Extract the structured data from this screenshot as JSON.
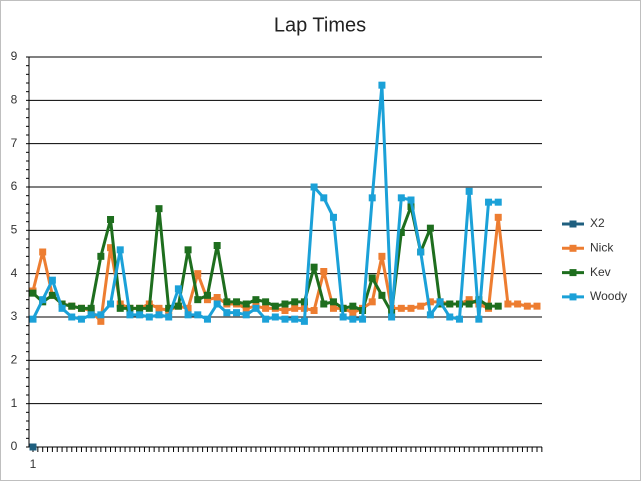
{
  "chart_data": {
    "type": "line",
    "title": "Lap Times",
    "categories": [
      "1",
      null,
      null,
      null,
      null,
      null,
      null,
      null,
      null,
      null,
      null,
      null,
      null,
      null,
      null,
      null,
      null,
      null,
      null,
      null,
      null,
      null,
      null,
      null,
      null,
      null,
      null,
      null,
      null,
      null,
      null,
      null,
      null,
      null,
      null,
      null,
      null,
      null,
      null,
      null,
      null,
      null,
      null,
      null,
      null,
      null,
      null,
      null,
      null,
      null,
      null,
      null,
      null
    ],
    "ylim": [
      0,
      9
    ],
    "yticks": [
      0,
      1,
      2,
      3,
      4,
      5,
      6,
      7,
      8,
      9
    ],
    "grid": true,
    "legend": "right",
    "series": [
      {
        "name": "X2",
        "color": "#1f5f7f",
        "values": [
          0,
          null,
          null,
          null,
          null,
          null,
          null,
          null,
          null,
          null,
          null,
          null,
          null,
          null,
          null,
          null,
          null,
          null,
          null,
          null,
          null,
          null,
          null,
          null,
          null,
          null,
          null,
          null,
          null,
          null,
          null,
          null,
          null,
          null,
          null,
          null,
          null,
          null,
          null,
          null,
          null,
          null,
          null,
          null,
          null,
          null,
          null,
          null,
          null,
          null,
          null,
          null,
          null
        ]
      },
      {
        "name": "Nick",
        "color": "#ed7d31",
        "values": [
          3.6,
          4.5,
          3.5,
          3.3,
          3.25,
          3.2,
          3.15,
          2.9,
          4.6,
          3.3,
          3.2,
          3.2,
          3.3,
          3.2,
          3.15,
          3.25,
          3.2,
          4.0,
          3.4,
          3.45,
          3.3,
          3.3,
          3.2,
          3.25,
          3.2,
          3.2,
          3.15,
          3.2,
          3.2,
          3.15,
          4.05,
          3.2,
          3.2,
          3.1,
          3.2,
          3.35,
          4.4,
          3.2,
          3.2,
          3.2,
          3.25,
          3.35,
          3.35,
          3.3,
          3.3,
          3.4,
          3.3,
          3.2,
          5.3,
          3.3,
          3.3,
          3.25,
          3.25
        ]
      },
      {
        "name": "Kev",
        "color": "#1e6e1e",
        "values": [
          3.55,
          3.35,
          3.5,
          3.3,
          3.25,
          3.2,
          3.2,
          4.4,
          5.25,
          3.2,
          3.2,
          3.2,
          3.2,
          5.5,
          3.2,
          3.25,
          4.55,
          3.4,
          3.5,
          4.65,
          3.35,
          3.35,
          3.3,
          3.4,
          3.35,
          3.25,
          3.3,
          3.35,
          3.35,
          4.15,
          3.3,
          3.35,
          3.2,
          3.25,
          3.15,
          3.9,
          3.5,
          3.1,
          4.95,
          5.55,
          4.5,
          5.05,
          3.3,
          3.3,
          3.3,
          3.3,
          3.4,
          3.25,
          3.25,
          null,
          null,
          null,
          null
        ]
      },
      {
        "name": "Woody",
        "color": "#1ba1d8",
        "values": [
          2.95,
          3.4,
          3.85,
          3.2,
          3.0,
          2.95,
          3.05,
          3.05,
          3.3,
          4.55,
          3.05,
          3.05,
          3.0,
          3.05,
          3.0,
          3.65,
          3.05,
          3.05,
          2.95,
          3.3,
          3.1,
          3.1,
          3.05,
          3.2,
          2.95,
          3.0,
          2.95,
          2.95,
          2.9,
          6.0,
          5.75,
          5.3,
          3.0,
          2.95,
          2.95,
          5.75,
          8.35,
          3.0,
          5.75,
          5.7,
          4.5,
          3.05,
          3.35,
          3.0,
          2.95,
          5.9,
          2.95,
          5.65,
          5.65,
          null,
          null,
          null,
          null
        ]
      }
    ]
  }
}
